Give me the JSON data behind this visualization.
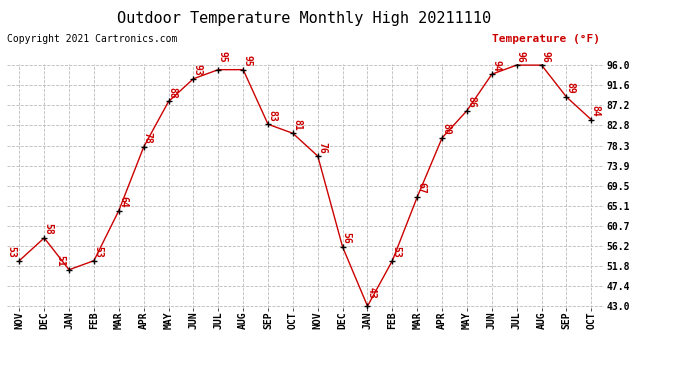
{
  "title": "Outdoor Temperature Monthly High 20211110",
  "copyright": "Copyright 2021 Cartronics.com",
  "legend_label": "Temperature (°F)",
  "months": [
    "NOV",
    "DEC",
    "JAN",
    "FEB",
    "MAR",
    "APR",
    "MAY",
    "JUN",
    "JUL",
    "AUG",
    "SEP",
    "OCT",
    "NOV",
    "DEC",
    "JAN",
    "FEB",
    "MAR",
    "APR",
    "MAY",
    "JUN",
    "JUL",
    "AUG",
    "SEP",
    "OCT"
  ],
  "values": [
    53,
    58,
    51,
    53,
    64,
    78,
    88,
    93,
    95,
    95,
    83,
    81,
    76,
    56,
    43,
    53,
    67,
    80,
    86,
    94,
    96,
    96,
    89,
    84
  ],
  "ylim_min": 43.0,
  "ylim_max": 96.0,
  "yticks": [
    43.0,
    47.4,
    51.8,
    56.2,
    60.7,
    65.1,
    69.5,
    73.9,
    78.3,
    82.8,
    87.2,
    91.6,
    96.0
  ],
  "line_color": "#cc0000",
  "marker_color": "#000000",
  "bg_color": "#ffffff",
  "grid_color": "#bbbbbb",
  "title_fontsize": 11,
  "tick_fontsize": 7,
  "annot_fontsize": 7,
  "copyright_fontsize": 7,
  "legend_fontsize": 8,
  "legend_color": "#cc0000"
}
